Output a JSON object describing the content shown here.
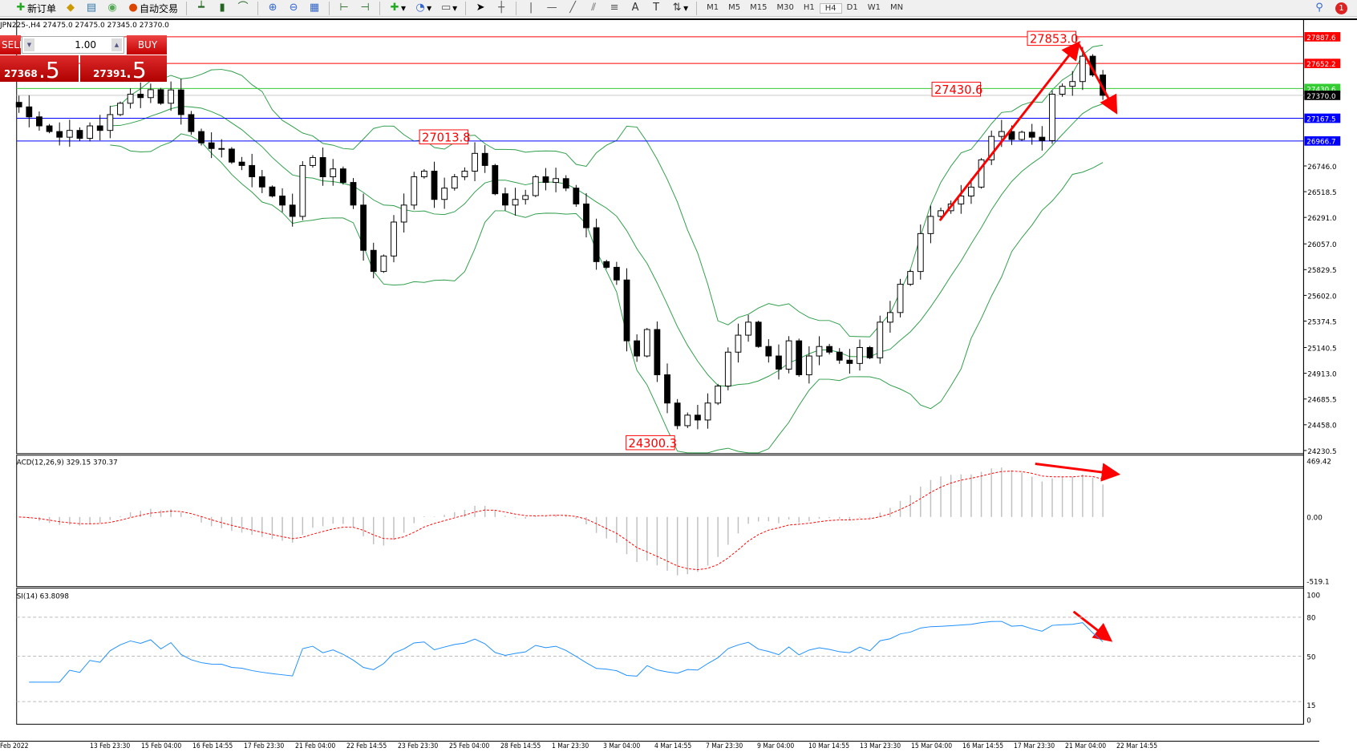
{
  "toolbar": {
    "new_order": "新订单",
    "auto_trading": "自动交易",
    "timeframes": [
      "M1",
      "M5",
      "M15",
      "M30",
      "H1",
      "H4",
      "D1",
      "W1",
      "MN"
    ],
    "active_timeframe": "H4",
    "notification_count": "1",
    "icons": [
      "new-order-icon",
      "folder-icon",
      "navigator-icon",
      "signal-icon",
      "auto-trading-icon",
      "bar-chart-icon",
      "candlestick-icon",
      "line-chart-icon",
      "zoom-in-icon",
      "zoom-out-icon",
      "tile-icon",
      "auto-scroll-icon",
      "chart-shift-icon",
      "indicators-icon",
      "period-icon",
      "templates-icon",
      "cursor-icon",
      "crosshair-icon",
      "vertical-line-icon",
      "horizontal-line-icon",
      "trendline-icon",
      "equidistant-channel-icon",
      "fibonacci-icon",
      "text-icon",
      "text-label-icon",
      "arrows-icon"
    ]
  },
  "chart": {
    "symbol_info": "JPN225-,H4  27475.0 27475.0 27345.0 27370.0"
  },
  "trade_panel": {
    "sell": "SELL",
    "buy": "BUY",
    "lot": "1.00",
    "bid_small": "27368",
    "bid_big": ".5",
    "ask_small": "27391",
    "ask_big": ".5"
  },
  "colors": {
    "bull": "#ffffff",
    "bear": "#000000",
    "bands": "#2e9e4a",
    "macd_signal": "#ff0000",
    "macd_hist": "#c0c0c0",
    "rsi": "#1e90ff",
    "annot": "#ff0000"
  },
  "chart_data": [
    {
      "type": "candlestick",
      "symbol": "JPN225-",
      "timeframe": "H4",
      "ylim": [
        24230.5,
        27887.6
      ],
      "y_ticks": [
        "26746.0",
        "26518.5",
        "26291.0",
        "26057.0",
        "25829.5",
        "25602.0",
        "25374.5",
        "25140.5",
        "24913.0",
        "24685.5",
        "24458.0",
        "24230.5"
      ],
      "closes": [
        27268,
        27180,
        27100,
        27050,
        27000,
        27060,
        26990,
        27100,
        27060,
        27200,
        27300,
        27380,
        27350,
        27420,
        27300,
        27418,
        27200,
        27050,
        26950,
        26900,
        26895,
        26780,
        26750,
        26650,
        26560,
        26480,
        26400,
        26300,
        26750,
        26820,
        26650,
        26720,
        26600,
        26400,
        26000,
        25813,
        25950,
        26250,
        26400,
        26650,
        26700,
        26450,
        26550,
        26650,
        26700,
        26857,
        26750,
        26500,
        26400,
        26450,
        26484,
        26650,
        26600,
        26634,
        26550,
        26410,
        26200,
        25900,
        25850,
        25738,
        25200,
        25066,
        25300,
        24900,
        24650,
        24450,
        24543,
        24500,
        24650,
        24800,
        25100,
        25250,
        25365,
        25150,
        25066,
        24950,
        25200,
        24900,
        25066,
        25150,
        25100,
        25029,
        25000,
        25141,
        25050,
        25365,
        25450,
        25700,
        25813,
        26148,
        26300,
        26350,
        26410,
        26480,
        26559,
        26800,
        27007,
        27050,
        26980,
        27044,
        27000,
        26970,
        27380,
        27450,
        27492,
        27716,
        27550,
        27370
      ],
      "overlays": "Bollinger Bands",
      "hlines": [
        {
          "price": "27887.6",
          "color": "#ff0000"
        },
        {
          "price": "27652.2",
          "color": "#ff0000"
        },
        {
          "price": "27430.6",
          "color": "#33cc33"
        },
        {
          "price": "27370.0",
          "color": "#000000"
        },
        {
          "price": "27167.5",
          "color": "#0000ff"
        },
        {
          "price": "26966.7",
          "color": "#0000ff"
        }
      ],
      "annotations": [
        "27853.0",
        "27430.6",
        "27013.8",
        "24300.3"
      ],
      "dates": [
        "Feb 2022",
        "13 Feb 23:30",
        "15 Feb 04:00",
        "16 Feb 14:55",
        "17 Feb 23:30",
        "21 Feb 04:00",
        "22 Feb 14:55",
        "23 Feb 23:30",
        "25 Feb 04:00",
        "28 Feb 14:55",
        "1 Mar 23:30",
        "3 Mar 04:00",
        "4 Mar 14:55",
        "7 Mar 23:30",
        "9 Mar 04:00",
        "10 Mar 14:55",
        "13 Mar 23:30",
        "15 Mar 04:00",
        "16 Mar 14:55",
        "17 Mar 23:30",
        "21 Mar 04:00",
        "22 Mar 14:55"
      ]
    },
    {
      "type": "bar",
      "name": "MACD",
      "label": "ACD(12,26,9) 329.15 370.37",
      "ylim": [
        -519.1,
        469.42
      ],
      "y_ticks": [
        "469.42",
        "0.00",
        "-519.1"
      ]
    },
    {
      "type": "line",
      "name": "RSI",
      "label": "SI(14) 63.8098",
      "ylim": [
        0,
        100
      ],
      "y_ticks": [
        "100",
        "80",
        "50",
        "15",
        "0"
      ],
      "levels": [
        80,
        50,
        15
      ]
    }
  ]
}
